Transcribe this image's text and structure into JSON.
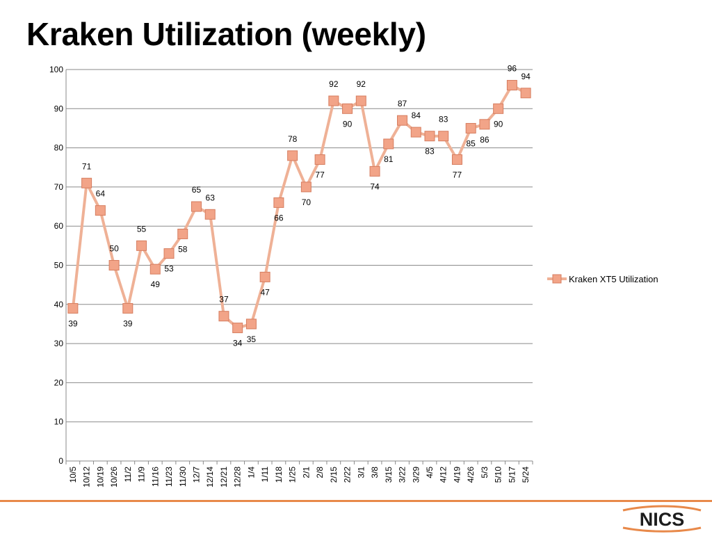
{
  "slide": {
    "title": "Kraken Utilization (weekly)"
  },
  "logo": {
    "text": "NICS"
  },
  "colors": {
    "series_line": "#efb196",
    "marker_fill": "#f2a488",
    "marker_stroke": "#d67d5f",
    "grid": "#8a8a8a",
    "footer_rule": "#e8894a"
  },
  "chart_data": {
    "type": "line",
    "title": "",
    "xlabel": "",
    "ylabel": "",
    "ylim": [
      0,
      100
    ],
    "yticks": [
      0,
      10,
      20,
      30,
      40,
      50,
      60,
      70,
      80,
      90,
      100
    ],
    "grid": true,
    "legend_position": "right",
    "categories": [
      "10/5",
      "10/12",
      "10/19",
      "10/26",
      "11/2",
      "11/9",
      "11/16",
      "11/23",
      "11/30",
      "12/7",
      "12/14",
      "12/21",
      "12/28",
      "1/4",
      "1/11",
      "1/18",
      "1/25",
      "2/1",
      "2/8",
      "2/15",
      "2/22",
      "3/1",
      "3/8",
      "3/15",
      "3/22",
      "3/29",
      "4/5",
      "4/12",
      "4/19",
      "4/26",
      "5/3",
      "5/10",
      "5/17",
      "5/24"
    ],
    "series": [
      {
        "name": "Kraken XT5 Utilization",
        "values": [
          39,
          71,
          64,
          50,
          39,
          55,
          49,
          53,
          58,
          65,
          63,
          37,
          34,
          35,
          47,
          66,
          78,
          70,
          77,
          92,
          90,
          92,
          74,
          81,
          87,
          84,
          83,
          83,
          77,
          85,
          86,
          90,
          96,
          94
        ]
      }
    ],
    "data_labels": [
      "39",
      "71",
      "64",
      "50",
      "39",
      "55",
      "49",
      "53",
      "58",
      "65",
      "63",
      "37",
      "34",
      "35",
      "47",
      "66",
      "78",
      "70",
      "77",
      "92",
      "90",
      "92",
      "74",
      "81",
      "87",
      "84",
      "83",
      "83",
      "77",
      "85",
      "86",
      "90",
      "96",
      "94"
    ]
  }
}
